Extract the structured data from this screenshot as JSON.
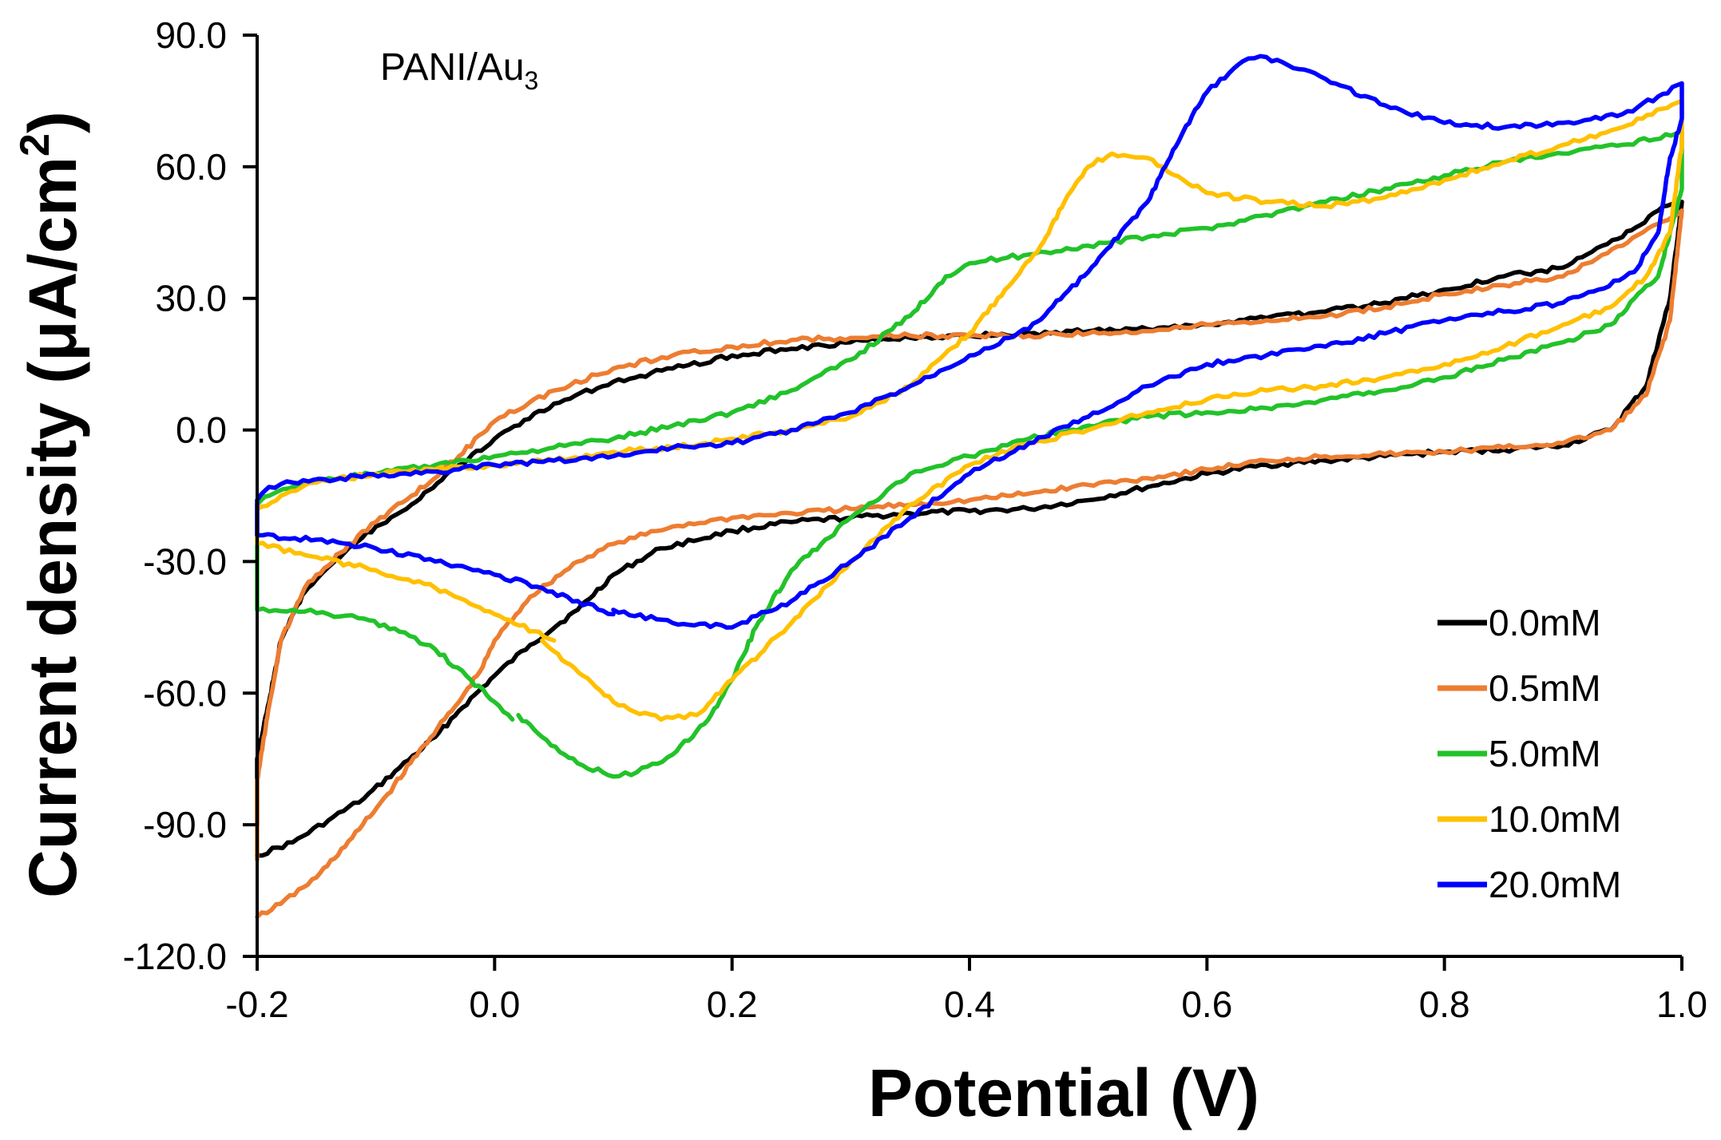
{
  "chart_data": {
    "type": "line",
    "title": "",
    "annotation": {
      "text": "PANI/Au",
      "subscript": "3"
    },
    "xlabel": "Potential (V)",
    "ylabel": {
      "main": "Current density (μA/cm",
      "sup": "2",
      "end": ")"
    },
    "xlim": [
      -0.2,
      1.0
    ],
    "ylim": [
      -120,
      90
    ],
    "xticks": [
      -0.2,
      0.0,
      0.2,
      0.4,
      0.6,
      0.8,
      1.0
    ],
    "xtick_labels": [
      "-0.2",
      "0.0",
      "0.2",
      "0.4",
      "0.6",
      "0.8",
      "1.0"
    ],
    "yticks": [
      -120,
      -90,
      -60,
      -30,
      0,
      30,
      60,
      90
    ],
    "ytick_labels": [
      "-120.0",
      "-90.0",
      "-60.0",
      "-30.0",
      "0.0",
      "30.0",
      "60.0",
      "90.0"
    ],
    "grid": false,
    "legend_position": "bottom-right",
    "series": [
      {
        "name": "0.0mM",
        "color": "#000000",
        "points": [
          [
            -0.2,
            -97
          ],
          [
            -0.17,
            -94
          ],
          [
            -0.14,
            -89
          ],
          [
            -0.11,
            -84
          ],
          [
            -0.08,
            -77
          ],
          [
            -0.05,
            -70
          ],
          [
            -0.03,
            -64
          ],
          [
            0.0,
            -56
          ],
          [
            0.03,
            -49
          ],
          [
            0.07,
            -41
          ],
          [
            0.1,
            -33
          ],
          [
            0.14,
            -27
          ],
          [
            0.2,
            -23
          ],
          [
            0.25,
            -21
          ],
          [
            0.3,
            -20
          ],
          [
            0.35,
            -19
          ],
          [
            0.4,
            -18.5
          ],
          [
            0.45,
            -18
          ],
          [
            0.5,
            -16
          ],
          [
            0.55,
            -13
          ],
          [
            0.6,
            -10
          ],
          [
            0.65,
            -8
          ],
          [
            0.7,
            -7
          ],
          [
            0.75,
            -6
          ],
          [
            0.8,
            -5
          ],
          [
            0.85,
            -4.5
          ],
          [
            0.9,
            -3.5
          ],
          [
            0.94,
            0
          ],
          [
            0.97,
            10
          ],
          [
            0.99,
            30
          ],
          [
            1.0,
            52
          ],
          [
            0.98,
            50
          ],
          [
            0.95,
            44
          ],
          [
            0.92,
            40
          ],
          [
            0.9,
            37
          ],
          [
            0.85,
            35
          ],
          [
            0.8,
            32
          ],
          [
            0.75,
            29
          ],
          [
            0.7,
            27
          ],
          [
            0.65,
            25.5
          ],
          [
            0.6,
            24
          ],
          [
            0.55,
            23
          ],
          [
            0.5,
            22.5
          ],
          [
            0.45,
            22
          ],
          [
            0.4,
            21.5
          ],
          [
            0.35,
            21
          ],
          [
            0.3,
            20
          ],
          [
            0.25,
            18.5
          ],
          [
            0.2,
            17
          ],
          [
            0.15,
            14
          ],
          [
            0.1,
            11
          ],
          [
            0.05,
            6
          ],
          [
            0.0,
            -2
          ],
          [
            -0.03,
            -8
          ],
          [
            -0.07,
            -17
          ],
          [
            -0.1,
            -22
          ],
          [
            -0.13,
            -29
          ],
          [
            -0.16,
            -37
          ],
          [
            -0.18,
            -48
          ],
          [
            -0.19,
            -62
          ],
          [
            -0.2,
            -75
          ],
          [
            -0.2,
            -90
          ]
        ]
      },
      {
        "name": "0.5mM",
        "color": "#ED7D31",
        "points": [
          [
            -0.2,
            -111
          ],
          [
            -0.18,
            -108
          ],
          [
            -0.15,
            -102
          ],
          [
            -0.12,
            -93
          ],
          [
            -0.09,
            -83
          ],
          [
            -0.06,
            -72
          ],
          [
            -0.03,
            -62
          ],
          [
            -0.01,
            -54
          ],
          [
            0.0,
            -48
          ],
          [
            0.03,
            -38
          ],
          [
            0.07,
            -30
          ],
          [
            0.1,
            -26
          ],
          [
            0.15,
            -22
          ],
          [
            0.2,
            -20
          ],
          [
            0.25,
            -19
          ],
          [
            0.3,
            -18
          ],
          [
            0.35,
            -17
          ],
          [
            0.4,
            -16
          ],
          [
            0.45,
            -14.5
          ],
          [
            0.5,
            -12.5
          ],
          [
            0.55,
            -11
          ],
          [
            0.6,
            -9
          ],
          [
            0.65,
            -7
          ],
          [
            0.7,
            -6
          ],
          [
            0.75,
            -5.5
          ],
          [
            0.8,
            -5
          ],
          [
            0.85,
            -4
          ],
          [
            0.9,
            -3
          ],
          [
            0.94,
            0
          ],
          [
            0.97,
            8
          ],
          [
            0.99,
            25
          ],
          [
            1.0,
            50
          ],
          [
            0.98,
            47
          ],
          [
            0.95,
            42
          ],
          [
            0.92,
            38
          ],
          [
            0.9,
            35
          ],
          [
            0.85,
            33
          ],
          [
            0.8,
            31
          ],
          [
            0.75,
            28
          ],
          [
            0.7,
            26
          ],
          [
            0.65,
            25
          ],
          [
            0.6,
            24
          ],
          [
            0.55,
            22.5
          ],
          [
            0.5,
            22
          ],
          [
            0.45,
            21.5
          ],
          [
            0.4,
            21.5
          ],
          [
            0.35,
            21.5
          ],
          [
            0.3,
            21
          ],
          [
            0.25,
            20.5
          ],
          [
            0.2,
            19
          ],
          [
            0.15,
            17
          ],
          [
            0.1,
            14
          ],
          [
            0.05,
            9
          ],
          [
            0.0,
            2
          ],
          [
            -0.03,
            -6
          ],
          [
            -0.07,
            -15
          ],
          [
            -0.1,
            -21
          ],
          [
            -0.13,
            -28
          ],
          [
            -0.16,
            -36
          ],
          [
            -0.18,
            -48
          ],
          [
            -0.19,
            -63
          ],
          [
            -0.2,
            -80
          ],
          [
            -0.2,
            -98
          ]
        ]
      },
      {
        "name": "5.0mM",
        "color": "#22C22A",
        "points": [
          [
            0.015,
            -66
          ],
          [
            0.0,
            -62
          ],
          [
            -0.02,
            -57
          ],
          [
            -0.05,
            -50
          ],
          [
            -0.08,
            -46
          ],
          [
            -0.11,
            -43
          ],
          [
            -0.14,
            -42
          ],
          [
            -0.17,
            -41
          ],
          [
            -0.2,
            -41
          ],
          [
            -0.2,
            -28
          ],
          [
            -0.2,
            -17
          ],
          [
            -0.19,
            -15
          ],
          [
            -0.17,
            -13
          ],
          [
            -0.14,
            -11
          ],
          [
            -0.1,
            -10
          ],
          [
            -0.05,
            -8
          ],
          [
            0.0,
            -6
          ],
          [
            0.05,
            -4
          ],
          [
            0.1,
            -2
          ],
          [
            0.15,
            1
          ],
          [
            0.2,
            4
          ],
          [
            0.25,
            9
          ],
          [
            0.3,
            16
          ],
          [
            0.35,
            26
          ],
          [
            0.38,
            35
          ],
          [
            0.4,
            38
          ],
          [
            0.45,
            40
          ],
          [
            0.5,
            42
          ],
          [
            0.55,
            44
          ],
          [
            0.6,
            46
          ],
          [
            0.65,
            49
          ],
          [
            0.7,
            52
          ],
          [
            0.75,
            55
          ],
          [
            0.8,
            58
          ],
          [
            0.85,
            61
          ],
          [
            0.9,
            63
          ],
          [
            0.95,
            65
          ],
          [
            1.0,
            68
          ],
          [
            1.0,
            55
          ],
          [
            0.99,
            45
          ],
          [
            0.98,
            35
          ],
          [
            0.96,
            30
          ],
          [
            0.94,
            24
          ],
          [
            0.9,
            20
          ],
          [
            0.85,
            16
          ],
          [
            0.8,
            12
          ],
          [
            0.75,
            9
          ],
          [
            0.7,
            7
          ],
          [
            0.65,
            5
          ],
          [
            0.6,
            4
          ],
          [
            0.55,
            3
          ],
          [
            0.5,
            1
          ],
          [
            0.45,
            -2
          ],
          [
            0.4,
            -6
          ],
          [
            0.35,
            -10
          ],
          [
            0.3,
            -20
          ],
          [
            0.25,
            -32
          ],
          [
            0.22,
            -45
          ],
          [
            0.2,
            -57
          ],
          [
            0.18,
            -66
          ],
          [
            0.15,
            -74
          ],
          [
            0.12,
            -78
          ],
          [
            0.1,
            -79
          ],
          [
            0.07,
            -76
          ],
          [
            0.04,
            -70
          ],
          [
            0.02,
            -65
          ]
        ]
      },
      {
        "name": "10.0mM",
        "color": "#FFC000",
        "points": [
          [
            0.05,
            -48
          ],
          [
            0.0,
            -42
          ],
          [
            -0.05,
            -36
          ],
          [
            -0.1,
            -32
          ],
          [
            -0.15,
            -29
          ],
          [
            -0.2,
            -26
          ],
          [
            -0.2,
            -18
          ],
          [
            -0.18,
            -15
          ],
          [
            -0.15,
            -12
          ],
          [
            -0.1,
            -10
          ],
          [
            -0.05,
            -9
          ],
          [
            0.0,
            -8
          ],
          [
            0.05,
            -7
          ],
          [
            0.1,
            -5
          ],
          [
            0.15,
            -4
          ],
          [
            0.2,
            -2
          ],
          [
            0.25,
            0
          ],
          [
            0.3,
            3
          ],
          [
            0.35,
            10
          ],
          [
            0.4,
            22
          ],
          [
            0.43,
            32
          ],
          [
            0.46,
            42
          ],
          [
            0.48,
            52
          ],
          [
            0.5,
            60
          ],
          [
            0.52,
            63
          ],
          [
            0.55,
            62
          ],
          [
            0.58,
            57
          ],
          [
            0.6,
            54
          ],
          [
            0.65,
            52
          ],
          [
            0.7,
            51
          ],
          [
            0.75,
            53
          ],
          [
            0.8,
            57
          ],
          [
            0.85,
            61
          ],
          [
            0.9,
            65
          ],
          [
            0.95,
            69
          ],
          [
            1.0,
            75
          ],
          [
            1.0,
            65
          ],
          [
            0.99,
            45
          ],
          [
            0.97,
            35
          ],
          [
            0.94,
            28
          ],
          [
            0.9,
            24
          ],
          [
            0.85,
            19
          ],
          [
            0.8,
            15
          ],
          [
            0.75,
            12
          ],
          [
            0.7,
            10
          ],
          [
            0.65,
            9
          ],
          [
            0.6,
            7
          ],
          [
            0.55,
            4
          ],
          [
            0.5,
            0
          ],
          [
            0.45,
            -3
          ],
          [
            0.4,
            -8
          ],
          [
            0.35,
            -17
          ],
          [
            0.3,
            -30
          ],
          [
            0.25,
            -44
          ],
          [
            0.2,
            -57
          ],
          [
            0.17,
            -65
          ],
          [
            0.14,
            -66
          ],
          [
            0.1,
            -62
          ],
          [
            0.06,
            -53
          ],
          [
            0.04,
            -48
          ]
        ]
      },
      {
        "name": "20.0mM",
        "color": "#0000FF",
        "points": [
          [
            0.1,
            -42
          ],
          [
            0.07,
            -39
          ],
          [
            0.04,
            -36
          ],
          [
            0.0,
            -33
          ],
          [
            -0.05,
            -30
          ],
          [
            -0.1,
            -27
          ],
          [
            -0.15,
            -25
          ],
          [
            -0.2,
            -24
          ],
          [
            -0.2,
            -22
          ],
          [
            -0.2,
            -16
          ],
          [
            -0.19,
            -13
          ],
          [
            -0.17,
            -12
          ],
          [
            -0.13,
            -11
          ],
          [
            -0.08,
            -10
          ],
          [
            -0.03,
            -9
          ],
          [
            0.0,
            -8
          ],
          [
            0.05,
            -7
          ],
          [
            0.1,
            -6
          ],
          [
            0.15,
            -4
          ],
          [
            0.2,
            -3
          ],
          [
            0.25,
            0
          ],
          [
            0.3,
            4
          ],
          [
            0.35,
            10
          ],
          [
            0.4,
            17
          ],
          [
            0.45,
            23
          ],
          [
            0.5,
            36
          ],
          [
            0.55,
            52
          ],
          [
            0.58,
            68
          ],
          [
            0.6,
            77
          ],
          [
            0.63,
            84
          ],
          [
            0.65,
            85
          ],
          [
            0.7,
            80
          ],
          [
            0.75,
            74
          ],
          [
            0.8,
            70
          ],
          [
            0.85,
            69
          ],
          [
            0.9,
            70
          ],
          [
            0.95,
            72
          ],
          [
            0.98,
            76
          ],
          [
            1.0,
            79
          ],
          [
            1.0,
            71
          ],
          [
            0.99,
            62
          ],
          [
            0.98,
            45
          ],
          [
            0.96,
            36
          ],
          [
            0.93,
            32
          ],
          [
            0.9,
            29
          ],
          [
            0.85,
            27
          ],
          [
            0.8,
            25
          ],
          [
            0.75,
            22
          ],
          [
            0.7,
            19
          ],
          [
            0.65,
            17
          ],
          [
            0.6,
            15
          ],
          [
            0.55,
            10
          ],
          [
            0.5,
            3
          ],
          [
            0.45,
            -3
          ],
          [
            0.4,
            -10
          ],
          [
            0.35,
            -20
          ],
          [
            0.3,
            -30
          ],
          [
            0.25,
            -39
          ],
          [
            0.2,
            -45
          ],
          [
            0.15,
            -44
          ],
          [
            0.1,
            -41
          ]
        ]
      }
    ]
  }
}
